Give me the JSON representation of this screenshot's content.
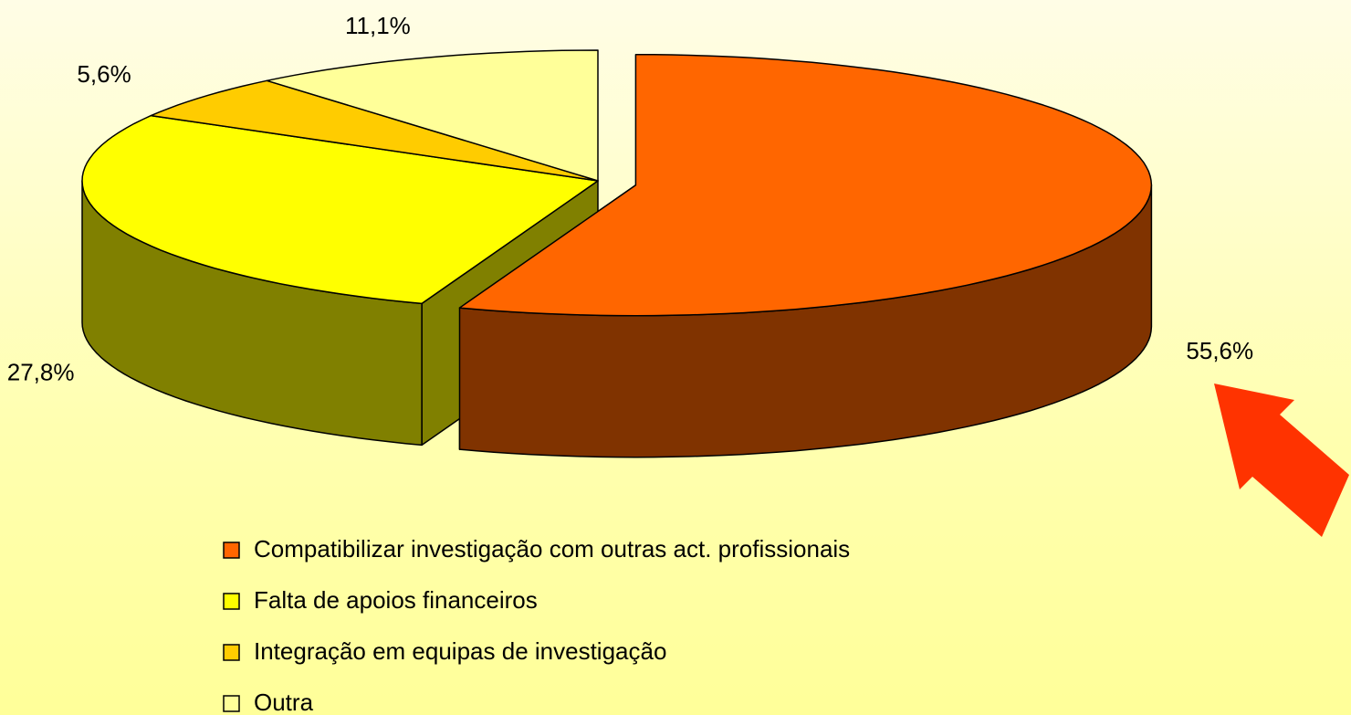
{
  "chart_data": {
    "type": "pie",
    "categories": [
      "Compatibilizar investigação com outras act. profissionais",
      "Falta de apoios financeiros",
      "Integração em equipas de investigação",
      "Outra"
    ],
    "values": [
      55.6,
      27.8,
      5.6,
      11.1
    ],
    "value_labels": [
      "55,6%",
      "27,8%",
      "5,6%",
      "11,1%"
    ],
    "colors": [
      "#ff6600",
      "#ffff00",
      "#ffcc00",
      "#ffff99"
    ],
    "exploded": [
      true,
      false,
      false,
      false
    ],
    "legend": "bottom"
  }
}
